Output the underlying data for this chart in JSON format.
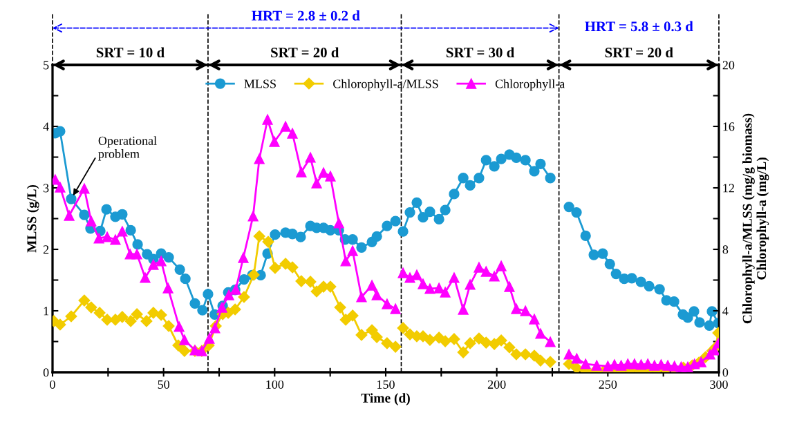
{
  "chart_data": {
    "type": "line",
    "xlabel": "Time (d)",
    "ylabel": "MLSS (g/L)",
    "y2label": "Chlorophyll-a/MLSS (mg/g biomass)\nChlorophyll-a (mg/L)",
    "xlim": [
      0,
      300
    ],
    "xticks": [
      0,
      {
        "value": 25,
        "label": null
      },
      50,
      {
        "value": 75,
        "label": null
      },
      100,
      {
        "value": 125,
        "label": null
      },
      150,
      {
        "value": 175,
        "label": null
      },
      200,
      {
        "value": 225,
        "label": null
      },
      250,
      {
        "value": 275,
        "label": null
      },
      300
    ],
    "ylim": [
      0,
      5
    ],
    "yticks": [
      0,
      {
        "value": 0.5,
        "label": null
      },
      1,
      {
        "value": 1.5,
        "label": null
      },
      2,
      {
        "value": 2.5,
        "label": null
      },
      3,
      {
        "value": 3.5,
        "label": null
      },
      4,
      {
        "value": 4.5,
        "label": null
      },
      5
    ],
    "y2lim": [
      0,
      20
    ],
    "y2ticks": [
      0,
      {
        "value": 2,
        "label": null
      },
      4,
      {
        "value": 6,
        "label": null
      },
      8,
      {
        "value": 10,
        "label": null
      },
      12,
      {
        "value": 14,
        "label": null
      },
      16,
      {
        "value": 18,
        "label": null
      },
      20
    ],
    "legend": "top",
    "line_style": "solid",
    "series": [
      {
        "name": "MLSS",
        "color": "#1b9ad2",
        "marker": "circle",
        "x": [
          1.2,
          3.4,
          8.4,
          14.3,
          17.1,
          21.5,
          24.3,
          28.3,
          31.4,
          35.2,
          38.3,
          42.6,
          45.4,
          48.9,
          52.3,
          57.3,
          59.8,
          64.1,
          67.5,
          70.0,
          73.0,
          76.6,
          79.1,
          82.2,
          86.2,
          89.9,
          93.7,
          96.8,
          100.2,
          104.9,
          108.0,
          111.7,
          116.1,
          118.9,
          122.0,
          125.1,
          128.9,
          131.7,
          135.1,
          139.1,
          143.8,
          146.0,
          150.6,
          154.4,
          157.0,
          157.8,
          160.9,
          164.0,
          166.8,
          169.9,
          174.0,
          176.8,
          180.8,
          184.9,
          188.0,
          192.0,
          195.2,
          198.9,
          202.0,
          205.7,
          208.8,
          212.9,
          216.9,
          219.7,
          224.1,
          228.0,
          232.5,
          235.9,
          240.0,
          243.7,
          247.7,
          250.9,
          253.7,
          257.4,
          260.8,
          264.9,
          268.6,
          273.3,
          276.4,
          279.8,
          283.8,
          286.0,
          288.8,
          291.3,
          295.7,
          296.9,
          299.7
        ],
        "values": [
          3.89,
          3.92,
          2.82,
          2.56,
          2.34,
          2.3,
          2.65,
          2.53,
          2.57,
          2.31,
          2.08,
          1.92,
          1.84,
          1.93,
          1.87,
          1.67,
          1.52,
          1.12,
          1.01,
          1.27,
          0.94,
          1.08,
          1.3,
          1.34,
          1.51,
          1.58,
          1.58,
          1.93,
          2.24,
          2.27,
          2.25,
          2.2,
          2.38,
          2.35,
          2.35,
          2.31,
          2.31,
          2.16,
          2.16,
          2.03,
          2.12,
          2.21,
          2.38,
          2.46,
          null,
          2.29,
          2.6,
          2.76,
          2.52,
          2.61,
          2.49,
          2.64,
          2.9,
          3.16,
          3.04,
          3.16,
          3.45,
          3.35,
          3.47,
          3.54,
          3.49,
          3.45,
          3.27,
          3.39,
          3.16,
          null,
          2.69,
          2.6,
          2.22,
          1.91,
          1.93,
          1.76,
          1.6,
          1.52,
          1.53,
          1.47,
          1.4,
          1.35,
          1.17,
          1.15,
          0.94,
          0.89,
          0.99,
          0.81,
          0.76,
          0.99,
          0.8
        ]
      },
      {
        "name": "Chlorophyll-a/MLSS",
        "color": "#f2cc00",
        "marker": "diamond",
        "axis": "y2",
        "x": [
          0.6,
          3.4,
          8.4,
          14.3,
          17.4,
          21.2,
          24.6,
          28.3,
          31.4,
          35.2,
          38.0,
          42.3,
          45.4,
          48.9,
          52.3,
          56.6,
          59.4,
          64.1,
          67.2,
          70.3,
          73.5,
          76.6,
          79.1,
          82.2,
          86.2,
          90.6,
          93.1,
          97.1,
          100.2,
          104.9,
          108.0,
          112.0,
          116.1,
          118.9,
          122.0,
          125.1,
          129.5,
          132.0,
          135.1,
          139.1,
          143.8,
          146.0,
          150.6,
          154.4,
          157.0,
          157.8,
          160.9,
          164.0,
          166.8,
          169.9,
          174.0,
          176.8,
          180.8,
          184.9,
          188.0,
          192.0,
          195.2,
          198.9,
          202.0,
          205.7,
          208.8,
          212.9,
          216.9,
          219.7,
          224.1,
          228.0,
          232.5,
          236.0,
          240.0,
          244.0,
          248.0,
          252.0,
          256.0,
          260.0,
          264.0,
          268.0,
          272.0,
          276.0,
          280.0,
          284.0,
          288.0,
          291.0,
          294.0,
          297.0,
          298.5,
          299.7
        ],
        "values": [
          3.33,
          3.1,
          3.64,
          4.67,
          4.22,
          3.87,
          3.42,
          3.42,
          3.6,
          3.33,
          3.78,
          3.33,
          3.87,
          3.73,
          3.01,
          1.75,
          1.39,
          1.39,
          1.39,
          1.75,
          3.01,
          3.78,
          3.87,
          4.09,
          4.9,
          6.34,
          8.85,
          8.49,
          6.79,
          7.06,
          6.83,
          5.93,
          5.89,
          5.26,
          5.57,
          5.57,
          4.22,
          3.42,
          3.69,
          2.43,
          2.74,
          2.29,
          1.89,
          1.66,
          null,
          2.88,
          2.47,
          2.34,
          2.34,
          2.11,
          2.25,
          2.02,
          2.16,
          1.3,
          1.89,
          2.2,
          1.93,
          1.84,
          2.07,
          1.62,
          1.17,
          1.17,
          1.08,
          0.76,
          0.67,
          null,
          0.54,
          0.27,
          0.09,
          0.05,
          0.05,
          0.1,
          0.1,
          0.15,
          0.1,
          0.1,
          0.15,
          0.15,
          0.2,
          0.3,
          0.45,
          0.63,
          0.99,
          1.39,
          1.62,
          2.56
        ]
      },
      {
        "name": "Chlorophyll-a",
        "color": "#ff00ff",
        "marker": "triangle",
        "axis": "y2",
        "x": [
          1.2,
          3.4,
          7.5,
          14.3,
          17.4,
          20.9,
          24.6,
          28.3,
          31.4,
          34.9,
          38.0,
          41.7,
          45.4,
          48.9,
          52.0,
          57.0,
          59.4,
          64.1,
          67.2,
          70.6,
          73.1,
          76.3,
          79.4,
          82.5,
          85.9,
          90.3,
          93.1,
          96.8,
          99.9,
          104.9,
          108.0,
          112.0,
          116.1,
          118.9,
          122.0,
          125.1,
          128.9,
          132.0,
          135.1,
          139.1,
          143.8,
          146.0,
          150.6,
          154.4,
          157.0,
          157.8,
          160.9,
          164.0,
          166.8,
          169.9,
          174.0,
          176.8,
          180.8,
          184.9,
          188.0,
          192.0,
          195.2,
          198.9,
          202.0,
          205.7,
          208.8,
          212.9,
          216.9,
          219.7,
          224.1,
          228.0,
          232.5,
          236.0,
          240.0,
          245.0,
          250.0,
          253.0,
          256.0,
          259.0,
          262.0,
          265.0,
          268.0,
          271.0,
          274.0,
          277.0,
          280.0,
          283.0,
          286.0,
          289.0,
          292.0,
          296.0,
          298.0,
          299.7
        ],
        "values": [
          12.54,
          12.04,
          10.2,
          11.96,
          9.84,
          8.72,
          8.81,
          8.63,
          9.17,
          7.69,
          7.69,
          6.16,
          7.01,
          7.24,
          5.48,
          2.97,
          2.11,
          1.44,
          1.39,
          2.2,
          2.88,
          4.22,
          5.03,
          5.39,
          7.46,
          10.16,
          13.89,
          16.45,
          15.01,
          16.0,
          15.55,
          13.03,
          13.98,
          12.31,
          12.99,
          12.76,
          9.71,
          7.24,
          7.91,
          4.9,
          5.66,
          5.03,
          4.45,
          4.13,
          null,
          6.47,
          6.16,
          6.34,
          5.75,
          5.44,
          5.48,
          5.21,
          6.16,
          4.09,
          5.71,
          6.83,
          6.56,
          6.25,
          6.92,
          5.57,
          4.13,
          4.0,
          3.46,
          2.52,
          1.98,
          null,
          1.17,
          0.9,
          0.54,
          0.45,
          0.4,
          0.5,
          0.45,
          0.55,
          0.55,
          0.5,
          0.55,
          0.45,
          0.5,
          0.45,
          0.4,
          0.35,
          0.35,
          0.54,
          0.67,
          1.17,
          1.44,
          1.89
        ]
      }
    ],
    "annotations": [
      {
        "text": "Operational\nproblem",
        "x": 8.4,
        "y": 2.82
      },
      "SRT = 10 d",
      "SRT = 20 d",
      "SRT = 30 d",
      "SRT = 20 d",
      "HRT = 2.8 ± 0.2 d",
      "HRT = 5.8 ± 0.3 d"
    ],
    "ref_lines": [
      {
        "axis": "x",
        "value": 0,
        "color": "#000000",
        "line_style": "dashed"
      },
      {
        "axis": "x",
        "value": 70,
        "color": "#000000",
        "line_style": "dashed"
      },
      {
        "axis": "x",
        "value": 157,
        "color": "#000000",
        "line_style": "dashed"
      },
      {
        "axis": "x",
        "value": 228,
        "color": "#000000",
        "line_style": "dashed"
      },
      {
        "axis": "x",
        "value": 300,
        "color": "#000000",
        "line_style": "dashed"
      }
    ]
  }
}
